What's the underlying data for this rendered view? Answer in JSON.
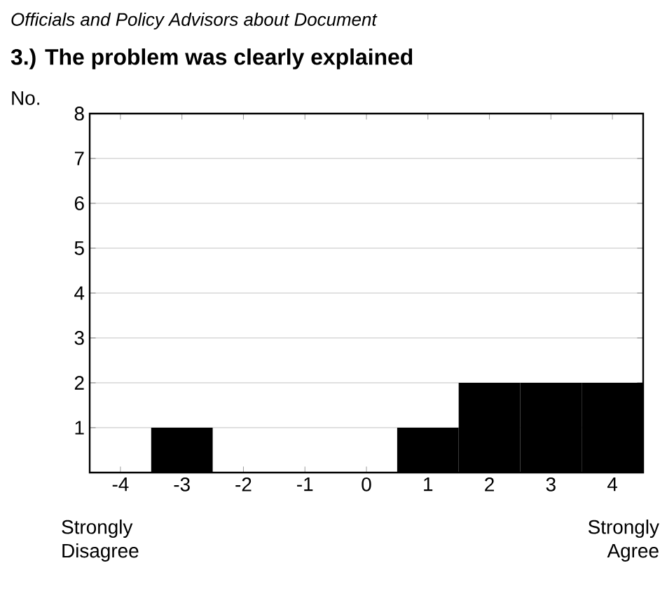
{
  "chart_data": {
    "type": "bar",
    "subtitle": "Officials and Policy Advisors about Document",
    "title": "3.) The problem was clearly explained",
    "ylabel": "No.",
    "categories": [
      "-4",
      "-3",
      "-2",
      "-1",
      "0",
      "1",
      "2",
      "3",
      "4"
    ],
    "values": [
      0,
      1,
      0,
      0,
      0,
      1,
      2,
      2,
      2
    ],
    "color": "#000000",
    "ylim": [
      0,
      8
    ],
    "yticks": [
      1,
      2,
      3,
      4,
      5,
      6,
      7,
      8
    ],
    "grid": "y",
    "annotations": [
      "Strongly Disagree",
      "Strongly Agree"
    ]
  }
}
